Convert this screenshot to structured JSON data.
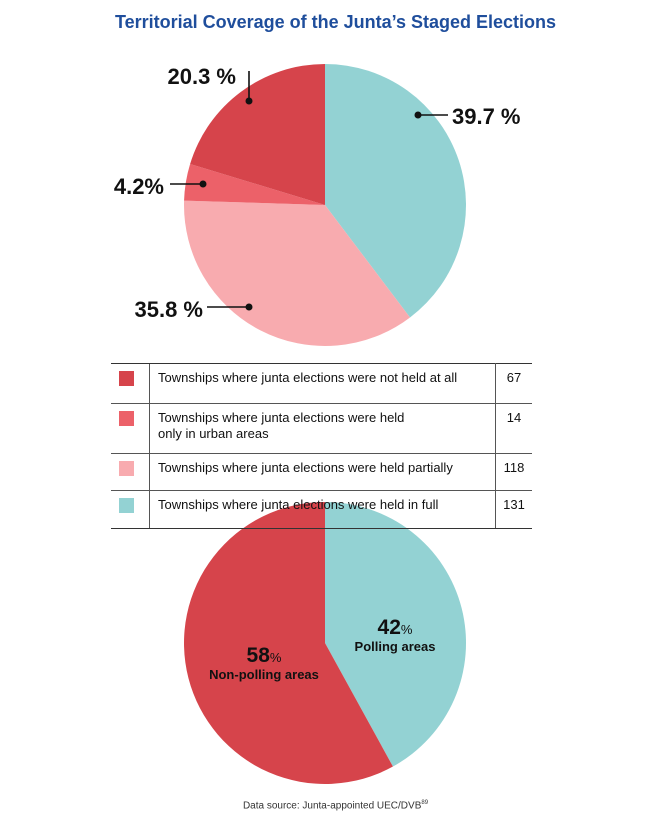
{
  "title": "Territorial Coverage of the Junta’s Staged Elections",
  "chart_data": [
    {
      "type": "pie",
      "slices": [
        {
          "label": "Townships where junta elections were held in full",
          "value": 39.7,
          "display": "39.7 %",
          "count": "131",
          "color": "#93d2d3"
        },
        {
          "label": "Townships where junta elections were held partially",
          "value": 35.8,
          "display": "35.8 %",
          "count": "118",
          "color": "#f8abaf"
        },
        {
          "label": "Townships where junta elections were held only in urban areas",
          "value": 4.2,
          "display": "4.2%",
          "count": "14",
          "color": "#ec6169"
        },
        {
          "label": "Townships where junta elections were not held at all",
          "value": 20.3,
          "display": "20.3 %",
          "count": "67",
          "color": "#d6444b"
        }
      ],
      "legend": {
        "placement": "below",
        "rows": [
          {
            "label_lines": [
              "Townships where junta elections were not held at all"
            ],
            "count": "67",
            "color": "#d6444b"
          },
          {
            "label_lines": [
              "Townships where junta elections were held",
              "only in urban areas"
            ],
            "count": "14",
            "color": "#ec6169"
          },
          {
            "label_lines": [
              "Townships where junta elections were held partially"
            ],
            "count": "118",
            "color": "#f8abaf"
          },
          {
            "label_lines": [
              "Townships where junta elections were held in full"
            ],
            "count": "131",
            "color": "#93d2d3"
          }
        ]
      }
    },
    {
      "type": "pie",
      "slices": [
        {
          "label": "Polling areas",
          "value": 42,
          "num": "42",
          "pct": "%",
          "color": "#93d2d3"
        },
        {
          "label": "Non-polling areas",
          "value": 58,
          "num": "58",
          "pct": "%",
          "color": "#d6444b"
        }
      ]
    }
  ],
  "source": {
    "text": "Data source: Junta-appointed UEC/DVB",
    "sup": "89"
  }
}
